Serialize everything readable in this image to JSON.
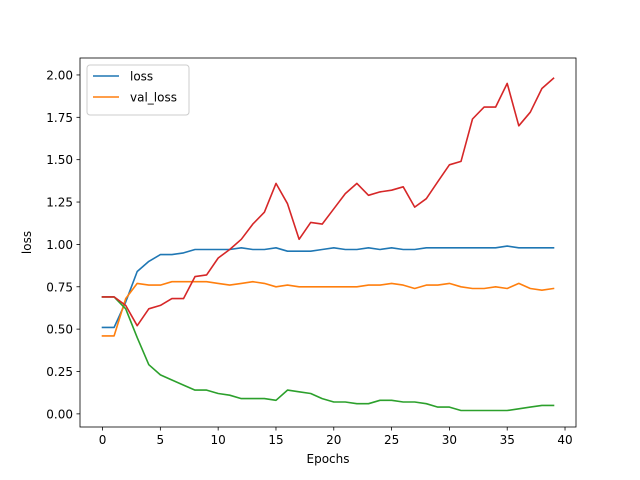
{
  "chart_data": {
    "type": "line",
    "title": "",
    "xlabel": "Epochs",
    "ylabel": "loss",
    "xlim": [
      -1.95,
      40.95
    ],
    "ylim": [
      -0.0775,
      2.1
    ],
    "x_ticks": [
      0,
      5,
      10,
      15,
      20,
      25,
      30,
      35,
      40
    ],
    "y_ticks": [
      0.0,
      0.25,
      0.5,
      0.75,
      1.0,
      1.25,
      1.5,
      1.75,
      2.0
    ],
    "x_tick_labels": [
      "0",
      "5",
      "10",
      "15",
      "20",
      "25",
      "30",
      "35",
      "40"
    ],
    "y_tick_labels": [
      "0.00",
      "0.25",
      "0.50",
      "0.75",
      "1.00",
      "1.25",
      "1.50",
      "1.75",
      "2.00"
    ],
    "grid": false,
    "legend_position": "top-left",
    "x": [
      0,
      1,
      2,
      3,
      4,
      5,
      6,
      7,
      8,
      9,
      10,
      11,
      12,
      13,
      14,
      15,
      16,
      17,
      18,
      19,
      20,
      21,
      22,
      23,
      24,
      25,
      26,
      27,
      28,
      29,
      30,
      31,
      32,
      33,
      34,
      35,
      36,
      37,
      38,
      39
    ],
    "series": [
      {
        "name": "loss",
        "color": "#1f77b4",
        "in_legend": true,
        "values": [
          0.51,
          0.51,
          0.66,
          0.84,
          0.9,
          0.94,
          0.94,
          0.95,
          0.97,
          0.97,
          0.97,
          0.97,
          0.98,
          0.97,
          0.97,
          0.98,
          0.96,
          0.96,
          0.96,
          0.97,
          0.98,
          0.97,
          0.97,
          0.98,
          0.97,
          0.98,
          0.97,
          0.97,
          0.98,
          0.98,
          0.98,
          0.98,
          0.98,
          0.98,
          0.98,
          0.99,
          0.98,
          0.98,
          0.98,
          0.98
        ]
      },
      {
        "name": "val_loss",
        "color": "#ff7f0e",
        "in_legend": true,
        "values": [
          0.46,
          0.46,
          0.68,
          0.77,
          0.76,
          0.76,
          0.78,
          0.78,
          0.78,
          0.78,
          0.77,
          0.76,
          0.77,
          0.78,
          0.77,
          0.75,
          0.76,
          0.75,
          0.75,
          0.75,
          0.75,
          0.75,
          0.75,
          0.76,
          0.76,
          0.77,
          0.76,
          0.74,
          0.76,
          0.76,
          0.77,
          0.75,
          0.74,
          0.74,
          0.75,
          0.74,
          0.77,
          0.74,
          0.73,
          0.74
        ]
      },
      {
        "color": "#2ca02c",
        "in_legend": false,
        "values": [
          0.69,
          0.69,
          0.62,
          0.45,
          0.29,
          0.23,
          0.2,
          0.17,
          0.14,
          0.14,
          0.12,
          0.11,
          0.09,
          0.09,
          0.09,
          0.08,
          0.14,
          0.13,
          0.12,
          0.09,
          0.07,
          0.07,
          0.06,
          0.06,
          0.08,
          0.08,
          0.07,
          0.07,
          0.06,
          0.04,
          0.04,
          0.02,
          0.02,
          0.02,
          0.02,
          0.02,
          0.03,
          0.04,
          0.05,
          0.05
        ]
      },
      {
        "color": "#d62728",
        "in_legend": false,
        "values": [
          0.69,
          0.69,
          0.64,
          0.52,
          0.62,
          0.64,
          0.68,
          0.68,
          0.81,
          0.82,
          0.92,
          0.97,
          1.03,
          1.12,
          1.19,
          1.36,
          1.24,
          1.03,
          1.13,
          1.12,
          1.21,
          1.3,
          1.36,
          1.29,
          1.31,
          1.32,
          1.34,
          1.22,
          1.27,
          1.37,
          1.47,
          1.49,
          1.74,
          1.81,
          1.81,
          1.95,
          1.7,
          1.78,
          1.92,
          1.98
        ]
      }
    ]
  }
}
